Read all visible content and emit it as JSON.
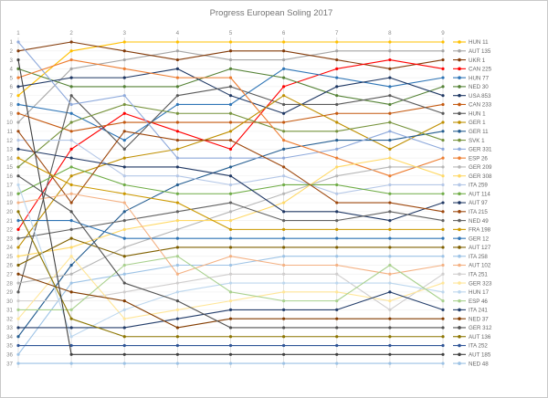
{
  "title": "Progress European Soling 2017",
  "chart_data": {
    "type": "line",
    "subtype": "bump-rank-progress",
    "title": "Progress European Soling 2017",
    "xlabel": "",
    "ylabel": "",
    "grid": true,
    "legend_position": "right",
    "x_ticks": [
      "1",
      "2",
      "3",
      "4",
      "5",
      "6",
      "7",
      "8",
      "9"
    ],
    "y_ticks": [
      "1",
      "2",
      "3",
      "4",
      "5",
      "6",
      "7",
      "8",
      "9",
      "10",
      "11",
      "12",
      "13",
      "14",
      "15",
      "16",
      "17",
      "18",
      "19",
      "20",
      "21",
      "22",
      "23",
      "24",
      "25",
      "26",
      "27",
      "28",
      "29",
      "30",
      "31",
      "32",
      "33",
      "34",
      "35",
      "36",
      "37"
    ],
    "y_axis": {
      "min": 1,
      "max": 37,
      "inverted": true
    },
    "x_axis": {
      "min": 1,
      "max": 9,
      "label_position": "top"
    },
    "series": [
      {
        "label": "HUN 11",
        "color": "#FFC000",
        "ranks": [
          7,
          2,
          1,
          1,
          1,
          1,
          1,
          1,
          1
        ]
      },
      {
        "label": "AUT 135",
        "color": "#A6A6A6",
        "ranks": [
          10,
          4,
          3,
          2,
          3,
          3,
          2,
          2,
          2
        ]
      },
      {
        "label": "UKR 1",
        "color": "#843C0B",
        "ranks": [
          2,
          1,
          2,
          3,
          2,
          2,
          3,
          4,
          3
        ]
      },
      {
        "label": "CAN 225",
        "color": "#FF0000",
        "ranks": [
          22,
          13,
          9,
          11,
          13,
          6,
          4,
          3,
          4
        ]
      },
      {
        "label": "HUN 77",
        "color": "#2E75B6",
        "ranks": [
          8,
          9,
          12,
          8,
          8,
          4,
          5,
          6,
          5
        ]
      },
      {
        "label": "NED 30",
        "color": "#548235",
        "ranks": [
          4,
          6,
          6,
          6,
          4,
          5,
          7,
          8,
          6
        ]
      },
      {
        "label": "USA 853",
        "color": "#1F3864",
        "ranks": [
          6,
          5,
          5,
          4,
          7,
          9,
          6,
          5,
          7
        ]
      },
      {
        "label": "CAN 233",
        "color": "#C55A11",
        "ranks": [
          9,
          11,
          10,
          10,
          10,
          10,
          9,
          9,
          8
        ]
      },
      {
        "label": "HUN 1",
        "color": "#595959",
        "ranks": [
          29,
          7,
          13,
          7,
          6,
          8,
          8,
          7,
          9
        ]
      },
      {
        "label": "GER 1",
        "color": "#BF8F00",
        "ranks": [
          24,
          16,
          14,
          13,
          11,
          7,
          10,
          13,
          10
        ]
      },
      {
        "label": "GER 11",
        "color": "#255E91",
        "ranks": [
          34,
          26,
          20,
          17,
          15,
          13,
          12,
          12,
          11
        ]
      },
      {
        "label": "SVK 1",
        "color": "#76933C",
        "ranks": [
          15,
          10,
          8,
          9,
          9,
          11,
          11,
          10,
          12
        ]
      },
      {
        "label": "GER 331",
        "color": "#8FAADC",
        "ranks": [
          1,
          8,
          7,
          14,
          14,
          14,
          13,
          11,
          13
        ]
      },
      {
        "label": "ESP 26",
        "color": "#ED7D31",
        "ranks": [
          5,
          3,
          4,
          5,
          5,
          12,
          14,
          16,
          14
        ]
      },
      {
        "label": "GER 209",
        "color": "#B7B7B7",
        "ranks": [
          28,
          27,
          24,
          22,
          20,
          18,
          16,
          15,
          15
        ]
      },
      {
        "label": "GER 308",
        "color": "#FFD966",
        "ranks": [
          25,
          24,
          22,
          21,
          21,
          19,
          15,
          14,
          16
        ]
      },
      {
        "label": "ITA 259",
        "color": "#B4C7E7",
        "ranks": [
          12,
          12,
          16,
          16,
          17,
          16,
          18,
          17,
          17
        ]
      },
      {
        "label": "AUT 114",
        "color": "#70AD47",
        "ranks": [
          18,
          15,
          17,
          18,
          18,
          17,
          17,
          18,
          18
        ]
      },
      {
        "label": "AUT 97",
        "color": "#203864",
        "ranks": [
          13,
          14,
          15,
          15,
          16,
          20,
          20,
          21,
          19
        ]
      },
      {
        "label": "ITA 215",
        "color": "#9E480E",
        "ranks": [
          11,
          19,
          11,
          12,
          12,
          15,
          19,
          19,
          20
        ]
      },
      {
        "label": "NED 49",
        "color": "#636363",
        "ranks": [
          23,
          22,
          21,
          20,
          19,
          21,
          21,
          20,
          21
        ]
      },
      {
        "label": "FRA 198",
        "color": "#CC9900",
        "ranks": [
          14,
          17,
          18,
          19,
          22,
          22,
          22,
          22,
          22
        ]
      },
      {
        "label": "GER 12",
        "color": "#2E74B5",
        "ranks": [
          21,
          21,
          23,
          23,
          23,
          23,
          23,
          23,
          23
        ]
      },
      {
        "label": "AUT 127",
        "color": "#7F6000",
        "ranks": [
          26,
          23,
          25,
          24,
          24,
          24,
          24,
          24,
          24
        ]
      },
      {
        "label": "ITA 258",
        "color": "#9DC3E6",
        "ranks": [
          36,
          28,
          27,
          26,
          26,
          25,
          25,
          25,
          25
        ]
      },
      {
        "label": "AUT 102",
        "color": "#F4B183",
        "ranks": [
          19,
          18,
          19,
          27,
          25,
          26,
          26,
          27,
          26
        ]
      },
      {
        "label": "ITA 251",
        "color": "#D0CECE",
        "ranks": [
          30,
          30,
          29,
          28,
          27,
          27,
          27,
          31,
          27
        ]
      },
      {
        "label": "GER 323",
        "color": "#FFE699",
        "ranks": [
          32,
          25,
          32,
          31,
          30,
          29,
          29,
          30,
          28
        ]
      },
      {
        "label": "HUN 17",
        "color": "#BDD7EE",
        "ranks": [
          17,
          34,
          31,
          29,
          28,
          28,
          28,
          28,
          29
        ]
      },
      {
        "label": "ESP 46",
        "color": "#A9D18E",
        "ranks": [
          31,
          31,
          26,
          25,
          29,
          30,
          30,
          26,
          30
        ]
      },
      {
        "label": "ITA 241",
        "color": "#243E6B",
        "ranks": [
          33,
          33,
          33,
          32,
          31,
          31,
          31,
          29,
          31
        ]
      },
      {
        "label": "NED 37",
        "color": "#833C00",
        "ranks": [
          27,
          29,
          30,
          33,
          32,
          32,
          32,
          32,
          32
        ]
      },
      {
        "label": "GER 312",
        "color": "#525252",
        "ranks": [
          16,
          20,
          28,
          30,
          33,
          33,
          33,
          33,
          33
        ]
      },
      {
        "label": "AUT 136",
        "color": "#8C7500",
        "ranks": [
          20,
          32,
          34,
          34,
          34,
          34,
          34,
          34,
          34
        ]
      },
      {
        "label": "ITA 252",
        "color": "#2F5597",
        "ranks": [
          35,
          35,
          35,
          35,
          35,
          35,
          35,
          35,
          35
        ]
      },
      {
        "label": "AUT 185",
        "color": "#404040",
        "ranks": [
          3,
          36,
          36,
          36,
          36,
          36,
          36,
          36,
          36
        ]
      },
      {
        "label": "NED 48",
        "color": "#9CC2E5",
        "ranks": [
          37,
          37,
          37,
          37,
          37,
          37,
          37,
          37,
          37
        ]
      }
    ]
  },
  "style": {
    "grid_v_color": "#d9d9d9",
    "grid_h_color": "#f0f0f0",
    "bg_color": "#ffffff"
  }
}
